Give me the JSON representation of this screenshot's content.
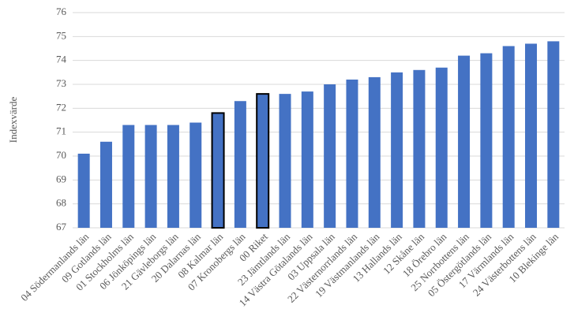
{
  "chart_data": {
    "type": "bar",
    "y_label": "Indexvärde",
    "categories": [
      "04 Södermanlands län",
      "09 Gotlands län",
      "01 Stockholms län",
      "06 Jönköpings län",
      "21 Gävleborgs län",
      "20 Dalarnas län",
      "08 Kalmar län",
      "07 Kronobergs län",
      "00 Riket",
      "23 Jämtlands län",
      "14 Västra Götalands län",
      "03 Uppsala län",
      "22 Västernorrlands län",
      "19 Västmanlands län",
      "13 Hallands län",
      "12 Skåne län",
      "18 Örebro län",
      "25 Norrbottens län",
      "05 Östergötlands län",
      "17 Värmlands län",
      "24 Västerbottens län",
      "10 Blekinge län"
    ],
    "values": [
      70.1,
      70.6,
      71.3,
      71.3,
      71.3,
      71.4,
      71.8,
      72.3,
      72.6,
      72.6,
      72.7,
      73.0,
      73.2,
      73.3,
      73.5,
      73.6,
      73.7,
      74.2,
      74.3,
      74.6,
      74.7,
      74.8
    ],
    "color": "#4472c4",
    "outlined": [
      6,
      8
    ],
    "outline_color": "#000000",
    "ylim": [
      67,
      76
    ],
    "yticks": [
      67,
      68,
      69,
      70,
      71,
      72,
      73,
      74,
      75,
      76
    ],
    "grid": true
  }
}
